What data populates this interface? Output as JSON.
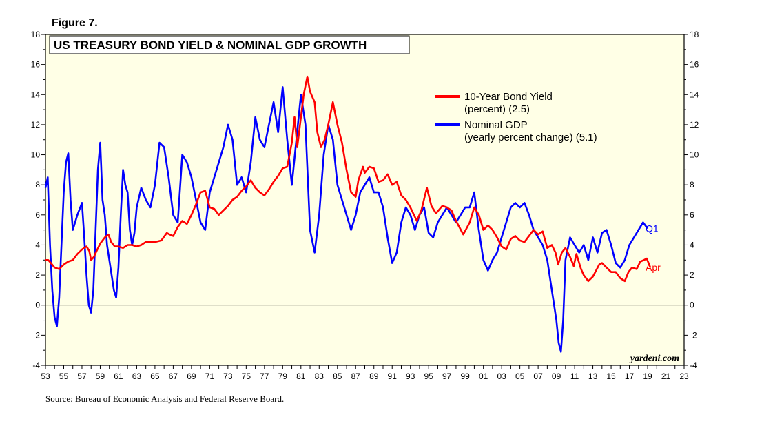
{
  "figure_label": "Figure 7.",
  "source": "Source: Bureau of Economic Analysis and Federal Reserve Board.",
  "watermark": "yardeni.com",
  "colors": {
    "plot_background": "#ffffe6",
    "bond": "#ff0000",
    "gdp": "#0000ff"
  },
  "chart_data": {
    "type": "line",
    "title": "US TREASURY BOND YIELD & NOMINAL GDP GROWTH",
    "xlabel": "",
    "ylabel": "",
    "xlim": [
      1953,
      2023
    ],
    "ylim": [
      -4,
      18
    ],
    "y_ticks": [
      -4,
      -2,
      0,
      2,
      4,
      6,
      8,
      10,
      12,
      14,
      16,
      18
    ],
    "y_tick_labels": [
      "-4",
      "-2",
      "0",
      "2",
      "4",
      "6",
      "8",
      "10",
      "12",
      "14",
      "16",
      "18"
    ],
    "x_ticks": [
      1953,
      1955,
      1957,
      1959,
      1961,
      1963,
      1965,
      1967,
      1969,
      1971,
      1973,
      1975,
      1977,
      1979,
      1981,
      1983,
      1985,
      1987,
      1989,
      1991,
      1993,
      1995,
      1997,
      1999,
      2001,
      2003,
      2005,
      2007,
      2009,
      2011,
      2013,
      2015,
      2017,
      2019,
      2021,
      2023
    ],
    "x_tick_labels": [
      "53",
      "55",
      "57",
      "59",
      "61",
      "63",
      "65",
      "67",
      "69",
      "71",
      "73",
      "75",
      "77",
      "79",
      "81",
      "83",
      "85",
      "87",
      "89",
      "91",
      "93",
      "95",
      "97",
      "99",
      "01",
      "03",
      "05",
      "07",
      "09",
      "11",
      "13",
      "15",
      "17",
      "19",
      "21",
      "23"
    ],
    "grid": false,
    "zero_line": true,
    "legend_position": "top-right",
    "legend": [
      {
        "series": "bond",
        "lines": [
          "10-Year Bond Yield",
          "(percent) (2.5)"
        ]
      },
      {
        "series": "gdp",
        "lines": [
          "Nominal GDP",
          "(yearly percent change) (5.1)"
        ]
      }
    ],
    "series": [
      {
        "name": "10-Year Bond Yield",
        "id": "bond",
        "color": "#ff0000",
        "end_label": "Apr",
        "x": [
          1953.0,
          1953.3,
          1953.6,
          1954.0,
          1954.5,
          1955.0,
          1955.5,
          1956.0,
          1956.5,
          1957.0,
          1957.5,
          1957.8,
          1958.0,
          1958.3,
          1958.6,
          1959.0,
          1959.5,
          1959.9,
          1960.2,
          1960.6,
          1961.0,
          1961.5,
          1962.0,
          1962.5,
          1963.0,
          1963.5,
          1964.0,
          1965.0,
          1965.7,
          1966.3,
          1966.6,
          1967.0,
          1967.5,
          1968.0,
          1968.5,
          1969.0,
          1969.5,
          1970.0,
          1970.5,
          1971.0,
          1971.5,
          1972.0,
          1972.5,
          1973.0,
          1973.5,
          1974.0,
          1974.5,
          1975.0,
          1975.5,
          1976.0,
          1976.5,
          1977.0,
          1977.5,
          1978.0,
          1978.5,
          1979.0,
          1979.5,
          1980.0,
          1980.3,
          1980.6,
          1981.0,
          1981.3,
          1981.7,
          1982.0,
          1982.5,
          1982.8,
          1983.2,
          1983.6,
          1984.0,
          1984.5,
          1985.0,
          1985.5,
          1986.0,
          1986.5,
          1987.0,
          1987.3,
          1987.8,
          1988.0,
          1988.5,
          1989.0,
          1989.5,
          1990.0,
          1990.5,
          1991.0,
          1991.5,
          1992.0,
          1992.5,
          1993.0,
          1993.7,
          1994.2,
          1994.8,
          1995.3,
          1995.8,
          1996.5,
          1997.0,
          1997.5,
          1998.0,
          1998.8,
          1999.5,
          2000.0,
          2000.5,
          2001.0,
          2001.5,
          2002.0,
          2002.5,
          2003.0,
          2003.5,
          2004.0,
          2004.5,
          2005.0,
          2005.5,
          2006.0,
          2006.5,
          2007.0,
          2007.5,
          2008.0,
          2008.5,
          2008.9,
          2009.2,
          2009.6,
          2010.0,
          2010.5,
          2010.9,
          2011.2,
          2011.7,
          2012.0,
          2012.5,
          2013.0,
          2013.7,
          2014.0,
          2014.5,
          2015.0,
          2015.5,
          2016.0,
          2016.5,
          2016.9,
          2017.3,
          2017.8,
          2018.2,
          2018.6,
          2018.9,
          2019.1,
          2019.3
        ],
        "y": [
          3.0,
          3.0,
          2.8,
          2.5,
          2.4,
          2.7,
          2.9,
          3.0,
          3.4,
          3.7,
          3.9,
          3.6,
          3.0,
          3.2,
          3.6,
          4.1,
          4.5,
          4.7,
          4.2,
          3.9,
          3.9,
          3.8,
          4.0,
          4.0,
          3.9,
          4.0,
          4.2,
          4.2,
          4.3,
          4.8,
          4.7,
          4.6,
          5.2,
          5.6,
          5.4,
          6.0,
          6.7,
          7.5,
          7.6,
          6.5,
          6.4,
          6.0,
          6.3,
          6.6,
          7.0,
          7.2,
          7.6,
          7.9,
          8.3,
          7.8,
          7.5,
          7.3,
          7.7,
          8.2,
          8.6,
          9.1,
          9.2,
          10.8,
          12.5,
          10.5,
          12.5,
          14.0,
          15.2,
          14.2,
          13.5,
          11.5,
          10.5,
          11.0,
          12.0,
          13.5,
          12.0,
          10.8,
          9.0,
          7.5,
          7.2,
          8.3,
          9.2,
          8.8,
          9.2,
          9.1,
          8.2,
          8.3,
          8.7,
          8.0,
          8.2,
          7.3,
          7.0,
          6.5,
          5.6,
          6.3,
          7.8,
          6.6,
          6.1,
          6.6,
          6.5,
          6.3,
          5.6,
          4.7,
          5.5,
          6.5,
          6.0,
          5.0,
          5.3,
          5.0,
          4.5,
          3.9,
          3.7,
          4.4,
          4.6,
          4.3,
          4.2,
          4.6,
          5.0,
          4.7,
          4.9,
          3.8,
          4.0,
          3.5,
          2.7,
          3.5,
          3.8,
          3.2,
          2.6,
          3.4,
          2.4,
          2.0,
          1.6,
          1.9,
          2.7,
          2.8,
          2.5,
          2.2,
          2.2,
          1.8,
          1.6,
          2.2,
          2.5,
          2.4,
          2.9,
          3.0,
          3.1,
          2.8,
          2.5
        ]
      },
      {
        "name": "Nominal GDP",
        "id": "gdp",
        "color": "#0000ff",
        "end_label": "Q1",
        "x": [
          1953.0,
          1953.25,
          1953.5,
          1953.75,
          1954.0,
          1954.25,
          1954.5,
          1954.75,
          1955.0,
          1955.25,
          1955.5,
          1955.75,
          1956.0,
          1956.5,
          1957.0,
          1957.25,
          1957.5,
          1957.75,
          1958.0,
          1958.25,
          1958.5,
          1958.75,
          1959.0,
          1959.25,
          1959.5,
          1959.75,
          1960.0,
          1960.25,
          1960.5,
          1960.75,
          1961.0,
          1961.25,
          1961.5,
          1961.75,
          1962.0,
          1962.25,
          1962.5,
          1962.75,
          1963.0,
          1963.5,
          1964.0,
          1964.5,
          1965.0,
          1965.5,
          1966.0,
          1966.5,
          1967.0,
          1967.5,
          1968.0,
          1968.5,
          1969.0,
          1969.5,
          1970.0,
          1970.5,
          1971.0,
          1971.5,
          1972.0,
          1972.5,
          1973.0,
          1973.5,
          1974.0,
          1974.5,
          1975.0,
          1975.5,
          1976.0,
          1976.5,
          1977.0,
          1977.5,
          1978.0,
          1978.5,
          1979.0,
          1979.5,
          1980.0,
          1980.5,
          1981.0,
          1981.5,
          1982.0,
          1982.5,
          1983.0,
          1983.5,
          1984.0,
          1984.5,
          1985.0,
          1985.5,
          1986.0,
          1986.5,
          1987.0,
          1987.5,
          1988.0,
          1988.5,
          1989.0,
          1989.5,
          1990.0,
          1990.5,
          1991.0,
          1991.5,
          1992.0,
          1992.5,
          1993.0,
          1993.5,
          1994.0,
          1994.5,
          1995.0,
          1995.5,
          1996.0,
          1996.5,
          1997.0,
          1997.5,
          1998.0,
          1998.5,
          1999.0,
          1999.5,
          2000.0,
          2000.5,
          2001.0,
          2001.5,
          2002.0,
          2002.5,
          2003.0,
          2003.5,
          2004.0,
          2004.5,
          2005.0,
          2005.5,
          2006.0,
          2006.5,
          2007.0,
          2007.5,
          2008.0,
          2008.5,
          2009.0,
          2009.25,
          2009.5,
          2009.75,
          2010.0,
          2010.5,
          2011.0,
          2011.5,
          2012.0,
          2012.5,
          2013.0,
          2013.5,
          2014.0,
          2014.5,
          2015.0,
          2015.5,
          2016.0,
          2016.5,
          2017.0,
          2017.5,
          2018.0,
          2018.5,
          2019.0
        ],
        "y": [
          7.8,
          8.5,
          4.0,
          1.0,
          -0.8,
          -1.4,
          0.5,
          4.0,
          7.5,
          9.5,
          10.1,
          7.0,
          5.0,
          6.0,
          6.8,
          4.5,
          2.0,
          0.0,
          -0.5,
          1.0,
          5.0,
          9.0,
          10.8,
          7.0,
          6.0,
          4.0,
          3.0,
          2.0,
          1.0,
          0.5,
          2.5,
          6.0,
          9.0,
          8.0,
          7.5,
          5.0,
          4.0,
          4.8,
          6.5,
          7.8,
          7.0,
          6.5,
          8.0,
          10.8,
          10.5,
          8.5,
          6.0,
          5.5,
          10.0,
          9.5,
          8.5,
          7.0,
          5.5,
          5.0,
          7.5,
          8.5,
          9.5,
          10.5,
          12.0,
          11.0,
          8.0,
          8.5,
          7.5,
          9.5,
          12.5,
          11.0,
          10.5,
          12.0,
          13.5,
          11.5,
          14.5,
          11.0,
          8.0,
          11.0,
          14.0,
          12.0,
          5.0,
          3.5,
          6.0,
          10.0,
          12.0,
          11.0,
          8.0,
          7.0,
          6.0,
          5.0,
          6.0,
          7.5,
          8.0,
          8.5,
          7.5,
          7.5,
          6.5,
          4.5,
          2.8,
          3.5,
          5.5,
          6.5,
          6.0,
          5.0,
          6.0,
          6.5,
          4.8,
          4.5,
          5.5,
          6.0,
          6.5,
          6.0,
          5.5,
          6.0,
          6.5,
          6.5,
          7.5,
          5.0,
          3.0,
          2.3,
          3.0,
          3.5,
          4.5,
          5.5,
          6.5,
          6.8,
          6.5,
          6.8,
          6.0,
          5.0,
          4.5,
          4.0,
          3.0,
          1.0,
          -1.0,
          -2.5,
          -3.1,
          -1.0,
          3.0,
          4.5,
          4.0,
          3.5,
          4.0,
          3.0,
          4.5,
          3.5,
          4.8,
          5.0,
          4.0,
          2.8,
          2.5,
          3.0,
          4.0,
          4.5,
          5.0,
          5.5,
          5.1
        ]
      }
    ]
  }
}
